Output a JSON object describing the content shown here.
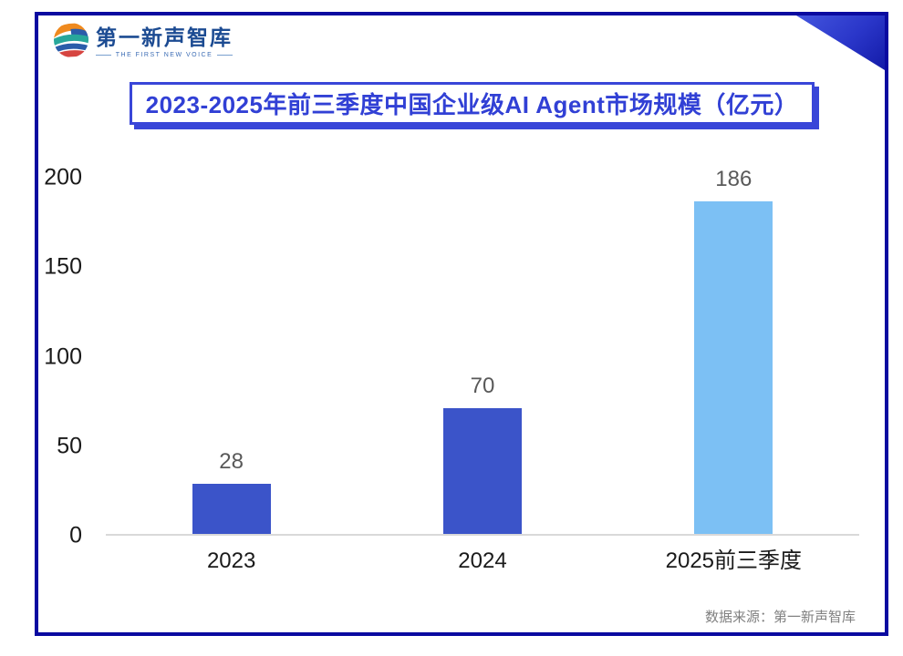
{
  "logo": {
    "name": "第一新声智库",
    "tagline": "THE FIRST NEW VOICE"
  },
  "source": "数据来源：第一新声智库",
  "colors": {
    "frame_border": "#0a0aa0",
    "title_blue": "#3140d5",
    "bar_primary": "#3b54c9",
    "bar_highlight": "#7cc0f4",
    "axis_line": "#d9d9d9",
    "data_label": "#595959",
    "source_text": "#808080"
  },
  "chart_data": {
    "type": "bar",
    "title": "2023-2025年前三季度中国企业级AI Agent市场规模（亿元）",
    "categories": [
      "2023",
      "2024",
      "2025前三季度"
    ],
    "values": [
      28,
      70,
      186
    ],
    "bar_colors": [
      "#3b54c9",
      "#3b54c9",
      "#7cc0f4"
    ],
    "xlabel": "",
    "ylabel": "",
    "ylim": [
      0,
      200
    ],
    "yticks": [
      0,
      50,
      100,
      150,
      200
    ],
    "grid": false,
    "legend": "none",
    "data_labels_shown": true
  }
}
